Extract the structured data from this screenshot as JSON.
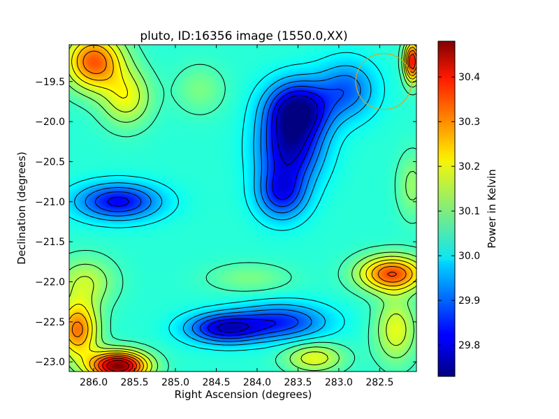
{
  "chart_data": {
    "type": "heatmap",
    "title": "pluto, ID:16356 image (1550.0,XX)",
    "xlabel": "Right Ascension (degrees)",
    "ylabel": "Declination (degrees)",
    "xlim": [
      286.3,
      282.05
    ],
    "ylim": [
      -23.12,
      -19.04
    ],
    "x_ticks": [
      286.0,
      285.5,
      285.0,
      284.5,
      284.0,
      283.5,
      283.0,
      282.5
    ],
    "x_tick_labels": [
      "286.0",
      "285.5",
      "285.0",
      "284.5",
      "284.0",
      "283.5",
      "283.0",
      "282.5"
    ],
    "y_ticks": [
      -19.5,
      -20.0,
      -20.5,
      -21.0,
      -21.5,
      -22.0,
      -22.5,
      -23.0
    ],
    "y_tick_labels": [
      "−19.5",
      "−20.0",
      "−20.5",
      "−21.0",
      "−21.5",
      "−22.0",
      "−22.5",
      "−23.0"
    ],
    "colorbar": {
      "label": "Power in Kelvin",
      "range": [
        29.73,
        30.48
      ],
      "ticks": [
        29.8,
        29.9,
        30.0,
        30.1,
        30.2,
        30.3,
        30.4
      ],
      "tick_labels": [
        "29.8",
        "29.9",
        "30.0",
        "30.1",
        "30.2",
        "30.3",
        "30.4"
      ],
      "colormap": "jet"
    },
    "base_value": 30.04,
    "features": [
      {
        "ra": 283.5,
        "dec": -19.85,
        "value": 29.75,
        "ra_width": 0.38,
        "dec_width": 0.35
      },
      {
        "ra": 283.6,
        "dec": -20.35,
        "value": 29.8,
        "ra_width": 0.38,
        "dec_width": 0.42
      },
      {
        "ra": 283.7,
        "dec": -20.9,
        "value": 29.85,
        "ra_width": 0.3,
        "dec_width": 0.32
      },
      {
        "ra": 282.9,
        "dec": -19.6,
        "value": 29.9,
        "ra_width": 0.35,
        "dec_width": 0.35
      },
      {
        "ra": 285.7,
        "dec": -21.0,
        "value": 29.82,
        "ra_width": 0.5,
        "dec_width": 0.22
      },
      {
        "ra": 284.4,
        "dec": -22.58,
        "value": 29.8,
        "ra_width": 0.45,
        "dec_width": 0.18
      },
      {
        "ra": 283.7,
        "dec": -22.5,
        "value": 29.86,
        "ra_width": 0.55,
        "dec_width": 0.22
      },
      {
        "ra": 286.0,
        "dec": -19.25,
        "value": 30.32,
        "ra_width": 0.35,
        "dec_width": 0.35
      },
      {
        "ra": 285.6,
        "dec": -19.7,
        "value": 30.18,
        "ra_width": 0.3,
        "dec_width": 0.35
      },
      {
        "ra": 285.7,
        "dec": -23.05,
        "value": 30.48,
        "ra_width": 0.35,
        "dec_width": 0.18
      },
      {
        "ra": 286.2,
        "dec": -22.6,
        "value": 30.3,
        "ra_width": 0.25,
        "dec_width": 0.35
      },
      {
        "ra": 286.1,
        "dec": -22.0,
        "value": 30.15,
        "ra_width": 0.35,
        "dec_width": 0.3
      },
      {
        "ra": 282.35,
        "dec": -21.9,
        "value": 30.33,
        "ra_width": 0.4,
        "dec_width": 0.22
      },
      {
        "ra": 282.1,
        "dec": -19.25,
        "value": 30.38,
        "ra_width": 0.1,
        "dec_width": 0.25
      },
      {
        "ra": 282.1,
        "dec": -20.8,
        "value": 30.12,
        "ra_width": 0.18,
        "dec_width": 0.4
      },
      {
        "ra": 283.3,
        "dec": -22.95,
        "value": 30.18,
        "ra_width": 0.35,
        "dec_width": 0.18
      },
      {
        "ra": 282.3,
        "dec": -22.6,
        "value": 30.18,
        "ra_width": 0.25,
        "dec_width": 0.4
      },
      {
        "ra": 284.1,
        "dec": -21.95,
        "value": 30.1,
        "ra_width": 0.5,
        "dec_width": 0.18
      },
      {
        "ra": 284.7,
        "dec": -19.6,
        "value": 30.1,
        "ra_width": 0.3,
        "dec_width": 0.3
      }
    ],
    "marker": {
      "shape": "circle",
      "ra": 282.45,
      "dec": -19.5,
      "radius_deg": 0.35,
      "color": "#daa520"
    },
    "contour_levels": [
      29.79,
      29.835,
      29.88,
      29.925,
      29.97,
      30.015,
      30.06,
      30.105,
      30.15,
      30.195,
      30.24,
      30.285,
      30.33,
      30.375,
      30.42
    ],
    "contour_color": "#000000",
    "grid": false
  }
}
